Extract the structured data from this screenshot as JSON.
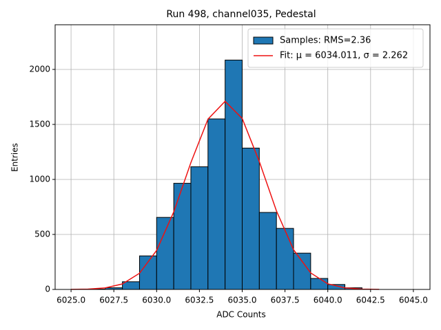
{
  "chart_data": {
    "type": "histogram",
    "title": "Run 498, channel035, Pedestal",
    "xlabel": "ADC Counts",
    "ylabel": "Entries",
    "bins": [
      6026,
      6027,
      6028,
      6029,
      6030,
      6031,
      6032,
      6033,
      6034,
      6035,
      6036,
      6037,
      6038,
      6039,
      6040,
      6041,
      6042
    ],
    "series": [
      {
        "name": "Samples: RMS=2.36",
        "color": "#1f77b4",
        "values": [
          3,
          15,
          70,
          305,
          655,
          965,
          1115,
          1550,
          2085,
          1285,
          700,
          555,
          330,
          100,
          45,
          15
        ]
      }
    ],
    "fit": {
      "name": "Fit: μ = 6034.011, σ = 2.262",
      "color": "#ee1111",
      "x": [
        6025,
        6026,
        6027,
        6028,
        6029,
        6030,
        6031,
        6032,
        6033,
        6034,
        6035,
        6036,
        6037,
        6038,
        6039,
        6040,
        6041,
        6042,
        6043
      ],
      "values": [
        0.6,
        3.2,
        14,
        50,
        147,
        355,
        705,
        1152,
        1548,
        1710,
        1554,
        1162,
        714,
        361,
        150,
        51,
        14.4,
        3.3,
        0.6
      ]
    },
    "xlim": [
      6024.07,
      6045.97
    ],
    "ylim": [
      0,
      2406
    ],
    "xticks": [
      {
        "value": 6025,
        "label": "6025.0"
      },
      {
        "value": 6027.5,
        "label": "6027.5"
      },
      {
        "value": 6030,
        "label": "6030.0"
      },
      {
        "value": 6032.5,
        "label": "6032.5"
      },
      {
        "value": 6035,
        "label": "6035.0"
      },
      {
        "value": 6037.5,
        "label": "6037.5"
      },
      {
        "value": 6040,
        "label": "6040.0"
      },
      {
        "value": 6042.5,
        "label": "6042.5"
      },
      {
        "value": 6045,
        "label": "6045.0"
      }
    ],
    "yticks": [
      0,
      500,
      1000,
      1500,
      2000
    ],
    "grid": true,
    "legend": "upper right"
  }
}
